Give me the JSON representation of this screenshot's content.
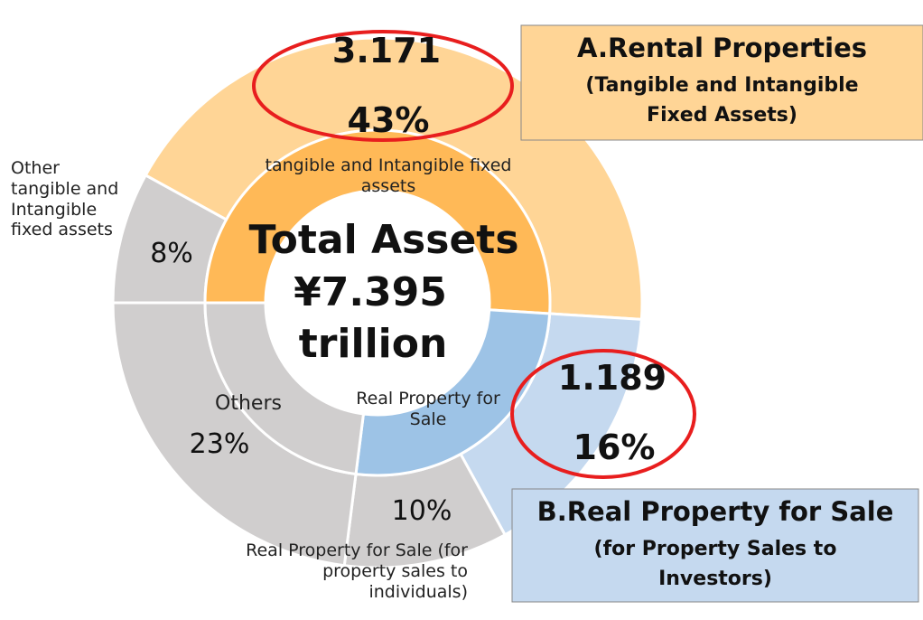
{
  "chart_data": {
    "type": "donut",
    "center_lines": [
      "Total Assets",
      "¥7.395",
      "trillion"
    ],
    "inner": {
      "categories": [
        "tangible and Intangible fixed assets",
        "Real Property for Sale",
        "Others"
      ],
      "values": [
        51,
        26,
        23
      ],
      "colors": [
        "#ffb957",
        "#9dc3e6",
        "#d0cece"
      ]
    },
    "outer": {
      "categories": [
        "Other tangible and Intangible fixed assets",
        null,
        null,
        "Real Property for Sale (for property sales to individuals)",
        null
      ],
      "values": [
        8,
        43,
        16,
        10,
        23
      ],
      "value_labels": [
        "8%",
        "43%",
        "16%",
        "10%",
        "23%"
      ],
      "amounts": [
        null,
        3.171,
        1.189,
        null,
        null
      ],
      "colors": [
        "#d0cece",
        "#ffd596",
        "#c5d9ef",
        "#d0cece",
        "#d0cece"
      ]
    },
    "callouts": [
      {
        "title": "A.Rental Properties",
        "subtitle": "(Tangible and Intangible Fixed Assets)",
        "color": "#ffd596"
      },
      {
        "title": "B.Real Property for Sale",
        "subtitle": "(for Property Sales to Investors)",
        "color": "#c5d9ef"
      }
    ]
  }
}
